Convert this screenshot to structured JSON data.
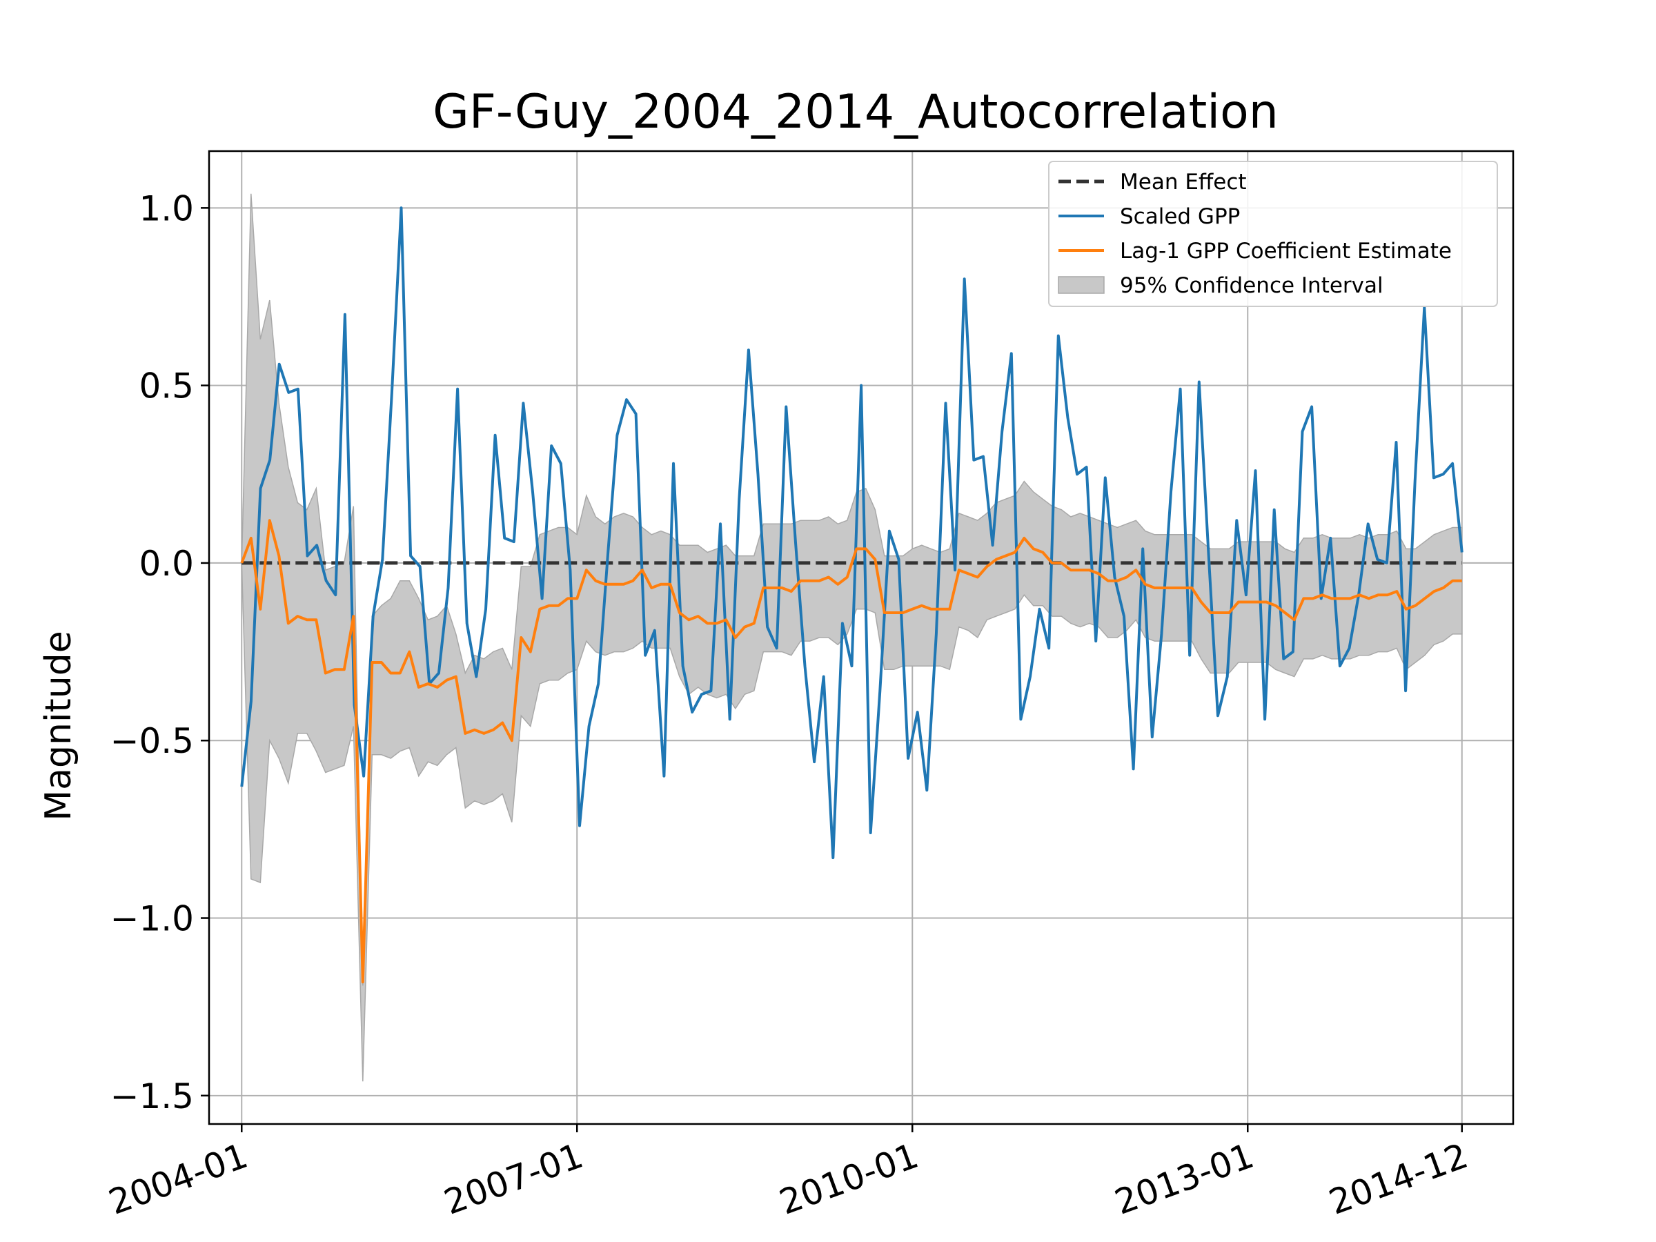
{
  "chart_data": {
    "type": "line",
    "title": "GF-Guy_2004_2014_Autocorrelation",
    "xlabel": "",
    "ylabel": "Magnitude",
    "x_axis": {
      "scale": "time",
      "start": "2004-01",
      "end": "2014-12",
      "ticks": [
        "2004-01",
        "2007-01",
        "2010-01",
        "2013-01",
        "2014-12"
      ]
    },
    "y_axis": {
      "ylim": [
        -1.58,
        1.16
      ],
      "ticks": [
        1.0,
        0.5,
        0.0,
        -0.5,
        -1.0,
        -1.5
      ],
      "tick_labels": [
        "1.0",
        "0.5",
        "0.0",
        "−0.5",
        "−1.0",
        "−1.5"
      ]
    },
    "grid": true,
    "legend": {
      "placement": "top-right",
      "entries": [
        "Mean Effect",
        "Scaled GPP",
        "Lag-1 GPP Coefficient Estimate",
        "95% Confidence Interval"
      ]
    },
    "colors": {
      "mean_effect": "#333333",
      "scaled_gpp": "#1f77b4",
      "coefficient": "#ff7f0e",
      "ci_fill": "#c8c8c8",
      "ci_edge": "#a8a8a8",
      "grid": "#b0b0b0"
    },
    "mean_effect": 0.0,
    "scaled_gpp": [
      -0.63,
      -0.39,
      0.21,
      0.29,
      0.56,
      0.48,
      0.49,
      0.02,
      0.05,
      -0.05,
      -0.09,
      0.7,
      -0.4,
      -0.6,
      -0.15,
      0.01,
      0.48,
      1.0,
      0.02,
      -0.01,
      -0.34,
      -0.31,
      -0.07,
      0.49,
      -0.17,
      -0.32,
      -0.13,
      0.36,
      0.07,
      0.06,
      0.45,
      0.2,
      -0.1,
      0.33,
      0.28,
      -0.02,
      -0.74,
      -0.46,
      -0.34,
      0.02,
      0.36,
      0.46,
      0.42,
      -0.26,
      -0.19,
      -0.6,
      0.28,
      -0.29,
      -0.42,
      -0.37,
      -0.36,
      0.11,
      -0.44,
      0.18,
      0.6,
      0.25,
      -0.18,
      -0.24,
      0.44,
      0.06,
      -0.29,
      -0.56,
      -0.32,
      -0.83,
      -0.17,
      -0.29,
      0.5,
      -0.76,
      -0.36,
      0.09,
      0.01,
      -0.55,
      -0.42,
      -0.64,
      -0.2,
      0.45,
      -0.02,
      0.8,
      0.29,
      0.3,
      0.05,
      0.37,
      0.59,
      -0.44,
      -0.32,
      -0.13,
      -0.24,
      0.64,
      0.41,
      0.25,
      0.27,
      -0.22,
      0.24,
      -0.04,
      -0.15,
      -0.58,
      0.04,
      -0.49,
      -0.2,
      0.2,
      0.49,
      -0.26,
      0.51,
      0.03,
      -0.43,
      -0.32,
      0.12,
      -0.09,
      0.26,
      -0.44,
      0.15,
      -0.27,
      -0.25,
      0.37,
      0.44,
      -0.1,
      0.07,
      -0.29,
      -0.24,
      -0.09,
      0.11,
      0.01,
      0.0,
      0.34,
      -0.36,
      0.23,
      0.72,
      0.24,
      0.25,
      0.28,
      0.03
    ],
    "coefficient_estimate": [
      0.0,
      0.07,
      -0.13,
      0.12,
      0.02,
      -0.17,
      -0.15,
      -0.16,
      -0.16,
      -0.31,
      -0.3,
      -0.3,
      -0.15,
      -1.18,
      -0.28,
      -0.28,
      -0.31,
      -0.31,
      -0.25,
      -0.35,
      -0.34,
      -0.35,
      -0.33,
      -0.32,
      -0.48,
      -0.47,
      -0.48,
      -0.47,
      -0.45,
      -0.5,
      -0.21,
      -0.25,
      -0.13,
      -0.12,
      -0.12,
      -0.1,
      -0.1,
      -0.02,
      -0.05,
      -0.06,
      -0.06,
      -0.06,
      -0.05,
      -0.02,
      -0.07,
      -0.06,
      -0.06,
      -0.14,
      -0.16,
      -0.15,
      -0.17,
      -0.17,
      -0.16,
      -0.21,
      -0.18,
      -0.17,
      -0.07,
      -0.07,
      -0.07,
      -0.08,
      -0.05,
      -0.05,
      -0.05,
      -0.04,
      -0.06,
      -0.04,
      0.04,
      0.04,
      0.01,
      -0.14,
      -0.14,
      -0.14,
      -0.13,
      -0.12,
      -0.13,
      -0.13,
      -0.13,
      -0.02,
      -0.03,
      -0.04,
      -0.01,
      0.01,
      0.02,
      0.03,
      0.07,
      0.04,
      0.03,
      0.0,
      0.0,
      -0.02,
      -0.02,
      -0.02,
      -0.03,
      -0.05,
      -0.05,
      -0.04,
      -0.02,
      -0.06,
      -0.07,
      -0.07,
      -0.07,
      -0.07,
      -0.07,
      -0.11,
      -0.14,
      -0.14,
      -0.14,
      -0.11,
      -0.11,
      -0.11,
      -0.11,
      -0.12,
      -0.14,
      -0.16,
      -0.1,
      -0.1,
      -0.09,
      -0.1,
      -0.1,
      -0.1,
      -0.09,
      -0.1,
      -0.09,
      -0.09,
      -0.08,
      -0.13,
      -0.12,
      -0.1,
      -0.08,
      -0.07,
      -0.05,
      -0.05
    ],
    "ci_upper": [
      0.0,
      1.04,
      0.63,
      0.74,
      0.45,
      0.27,
      0.17,
      0.15,
      0.21,
      -0.02,
      -0.01,
      0.0,
      0.16,
      -1.19,
      -0.15,
      -0.12,
      -0.1,
      -0.05,
      -0.05,
      -0.1,
      -0.16,
      -0.15,
      -0.12,
      -0.2,
      -0.31,
      -0.26,
      -0.27,
      -0.25,
      -0.24,
      -0.3,
      -0.01,
      -0.01,
      0.08,
      0.09,
      0.1,
      0.1,
      0.08,
      0.19,
      0.13,
      0.11,
      0.13,
      0.14,
      0.13,
      0.1,
      0.08,
      0.09,
      0.08,
      0.05,
      0.05,
      0.05,
      0.03,
      0.04,
      0.05,
      0.02,
      0.02,
      0.02,
      0.11,
      0.11,
      0.11,
      0.11,
      0.12,
      0.12,
      0.12,
      0.13,
      0.11,
      0.12,
      0.2,
      0.21,
      0.15,
      0.02,
      0.02,
      0.02,
      0.04,
      0.05,
      0.04,
      0.03,
      0.04,
      0.14,
      0.13,
      0.12,
      0.14,
      0.17,
      0.18,
      0.19,
      0.23,
      0.2,
      0.18,
      0.16,
      0.15,
      0.13,
      0.14,
      0.13,
      0.12,
      0.11,
      0.1,
      0.11,
      0.12,
      0.09,
      0.08,
      0.08,
      0.08,
      0.08,
      0.08,
      0.06,
      0.04,
      0.04,
      0.04,
      0.06,
      0.06,
      0.06,
      0.06,
      0.06,
      0.04,
      0.03,
      0.07,
      0.07,
      0.08,
      0.07,
      0.07,
      0.07,
      0.08,
      0.07,
      0.08,
      0.08,
      0.09,
      0.04,
      0.04,
      0.06,
      0.08,
      0.09,
      0.1,
      0.1
    ],
    "ci_lower": [
      0.0,
      -0.89,
      -0.9,
      -0.5,
      -0.55,
      -0.62,
      -0.48,
      -0.48,
      -0.53,
      -0.59,
      -0.58,
      -0.57,
      -0.46,
      -1.46,
      -0.54,
      -0.54,
      -0.55,
      -0.53,
      -0.52,
      -0.6,
      -0.56,
      -0.57,
      -0.54,
      -0.52,
      -0.69,
      -0.67,
      -0.68,
      -0.67,
      -0.65,
      -0.73,
      -0.43,
      -0.46,
      -0.34,
      -0.33,
      -0.33,
      -0.31,
      -0.3,
      -0.22,
      -0.25,
      -0.26,
      -0.25,
      -0.25,
      -0.24,
      -0.22,
      -0.24,
      -0.24,
      -0.24,
      -0.32,
      -0.37,
      -0.35,
      -0.37,
      -0.38,
      -0.37,
      -0.41,
      -0.37,
      -0.36,
      -0.25,
      -0.25,
      -0.25,
      -0.26,
      -0.22,
      -0.22,
      -0.21,
      -0.21,
      -0.23,
      -0.2,
      -0.13,
      -0.13,
      -0.14,
      -0.3,
      -0.3,
      -0.29,
      -0.29,
      -0.29,
      -0.29,
      -0.29,
      -0.3,
      -0.18,
      -0.19,
      -0.21,
      -0.16,
      -0.15,
      -0.14,
      -0.13,
      -0.09,
      -0.12,
      -0.12,
      -0.15,
      -0.15,
      -0.17,
      -0.18,
      -0.17,
      -0.18,
      -0.21,
      -0.21,
      -0.19,
      -0.16,
      -0.21,
      -0.22,
      -0.22,
      -0.22,
      -0.22,
      -0.22,
      -0.27,
      -0.31,
      -0.31,
      -0.31,
      -0.28,
      -0.28,
      -0.28,
      -0.28,
      -0.3,
      -0.31,
      -0.32,
      -0.27,
      -0.27,
      -0.26,
      -0.27,
      -0.27,
      -0.27,
      -0.26,
      -0.26,
      -0.25,
      -0.25,
      -0.24,
      -0.3,
      -0.28,
      -0.26,
      -0.23,
      -0.22,
      -0.2,
      -0.2
    ]
  }
}
